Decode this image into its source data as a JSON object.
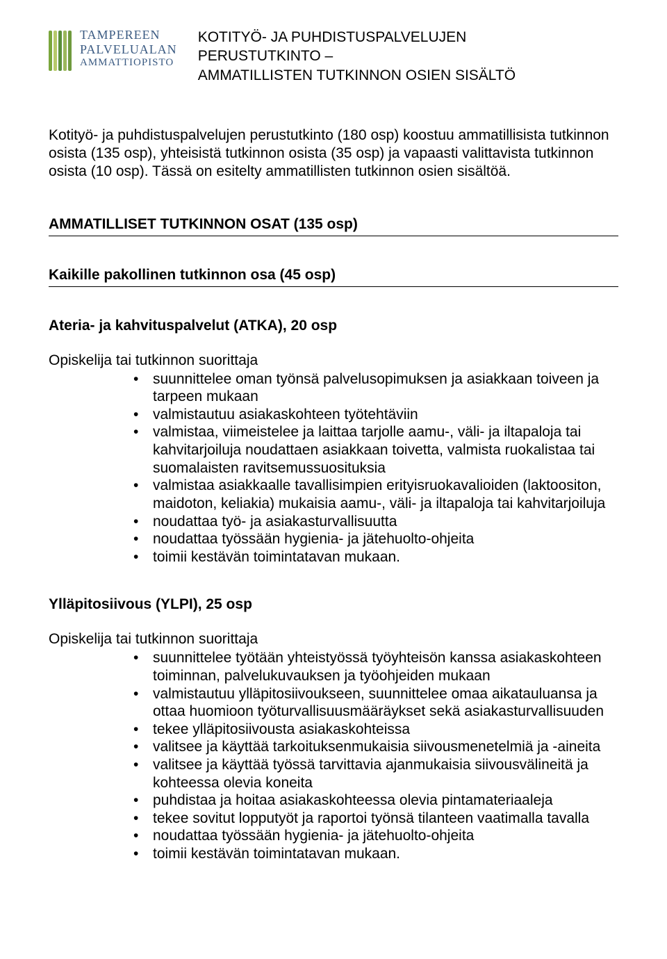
{
  "logo": {
    "stripe_colors": [
      "#7aa63c",
      "#b7c96a",
      "#5a8f3a",
      "#9cb85c",
      "#6f9a3e"
    ],
    "line1": "TAMPEREEN",
    "line2": "PALVELUALAN",
    "line3": "AMMATTIOPISTO",
    "text_color": "#3a5a82"
  },
  "header_title": "KOTITYÖ- JA PUHDISTUSPALVELUJEN\nPERUSTUTKINTO –\nAMMATILLISTEN TUTKINNON OSIEN SISÄLTÖ",
  "intro": "Kotityö- ja puhdistuspalvelujen perustutkinto (180 osp) koostuu ammatillisista tutkinnon osista (135 osp), yhteisistä tutkinnon osista (35 osp) ja vapaasti valittavista tutkinnon osista (10 osp). Tässä on esitelty ammatillisten tutkinnon osien sisältöä.",
  "section_heading": "AMMATILLISET TUTKINNON OSAT (135 osp)",
  "subsection_heading": "Kaikille pakollinen tutkinnon osa (45 osp)",
  "course1": {
    "title": "Ateria- ja kahvituspalvelut (ATKA), 20 osp",
    "lead": "Opiskelija tai tutkinnon suorittaja",
    "bullets": [
      "suunnittelee oman työnsä palvelusopimuksen ja asiakkaan toiveen ja tarpeen mukaan",
      "valmistautuu asiakaskohteen työtehtäviin",
      "valmistaa, viimeistelee ja laittaa tarjolle aamu-, väli- ja iltapaloja tai kahvitarjoiluja noudattaen asiakkaan toivetta, valmista ruokalistaa tai suomalaisten ravitsemussuosituksia",
      "valmistaa asiakkaalle tavallisimpien erityisruokavalioiden (laktoositon, maidoton, keliakia) mukaisia aamu-, väli- ja iltapaloja tai kahvitarjoiluja",
      "noudattaa työ- ja asiakasturvallisuutta",
      "noudattaa työssään hygienia- ja jätehuolto-ohjeita",
      "toimii kestävän toimintatavan mukaan."
    ]
  },
  "course2": {
    "title": "Ylläpitosiivous (YLPI), 25 osp",
    "lead": "Opiskelija tai tutkinnon suorittaja",
    "bullets": [
      "suunnittelee työtään yhteistyössä työyhteisön kanssa asiakaskohteen toiminnan, palvelukuvauksen ja työohjeiden mukaan",
      "valmistautuu ylläpitosiivoukseen, suunnittelee omaa aikatauluansa ja ottaa huomioon työturvallisuusmääräykset sekä asiakasturvallisuuden",
      "tekee ylläpitosiivousta asiakaskohteissa",
      "valitsee ja käyttää tarkoituksenmukaisia siivousmenetelmiä ja -aineita",
      "valitsee ja käyttää työssä tarvittavia ajanmukaisia siivousvälineitä ja kohteessa olevia koneita",
      "puhdistaa ja hoitaa asiakaskohteessa olevia pintamateriaaleja",
      "tekee sovitut lopputyöt ja raportoi työnsä tilanteen vaatimalla tavalla",
      "noudattaa työssään hygienia- ja jätehuolto-ohjeita",
      "toimii kestävän toimintatavan mukaan."
    ]
  }
}
